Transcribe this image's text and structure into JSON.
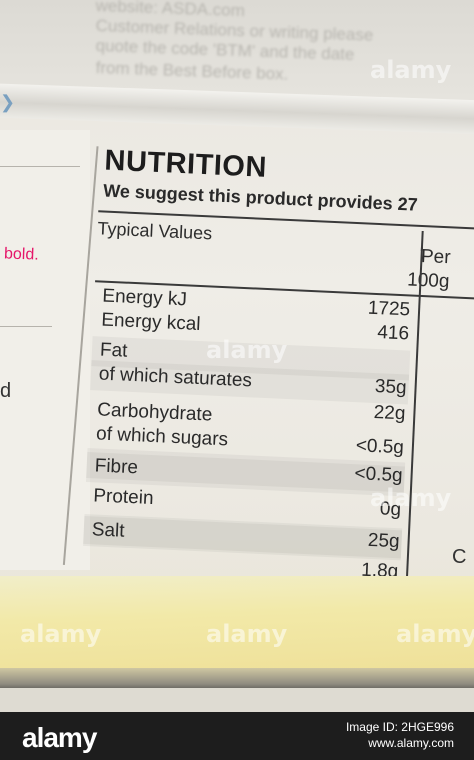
{
  "background_text": {
    "line1": "website: ASDA.com",
    "line2": "Customer Relations or writing please",
    "line3": "quote the code 'BTM' and the date",
    "line4": "from the Best Before box."
  },
  "left_panel": {
    "bold_word": "bold."
  },
  "nutrition": {
    "title": "NUTRITION",
    "subtitle": "We suggest this product provides 27",
    "typical_values": "Typical Values",
    "per_line1": "Per",
    "per_line2": "100g",
    "rows": [
      {
        "name": "Energy kJ",
        "value": "1725"
      },
      {
        "name": "Energy kcal",
        "value": "416"
      },
      {
        "name": "Fat",
        "value": ""
      },
      {
        "name": "of which saturates",
        "value": "35g"
      },
      {
        "name": "",
        "value": "22g"
      },
      {
        "name": "Carbohydrate",
        "value": ""
      },
      {
        "name": "of which sugars",
        "value": "<0.5g"
      },
      {
        "name": "",
        "value": "<0.5g"
      },
      {
        "name": "Fibre",
        "value": ""
      },
      {
        "name": "Protein",
        "value": "0g"
      },
      {
        "name": "",
        "value": "25g"
      },
      {
        "name": "Salt",
        "value": ""
      },
      {
        "name": "",
        "value": "1.8g"
      }
    ]
  },
  "watermark": "alamy",
  "footer": {
    "brand": "alamy",
    "image_id": "Image ID: 2HGE996",
    "url": "www.alamy.com"
  }
}
